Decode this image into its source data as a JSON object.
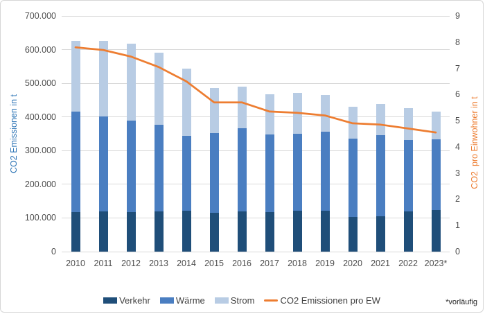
{
  "chart_data": {
    "type": "bar",
    "subtype": "stacked-bars-with-line-overlay",
    "title": "",
    "xlabel": "",
    "ylabel": "CO2 Emissionen in t",
    "y2label": "CO2  pro Einwohner in t",
    "ylabel_color": "#2e75b6",
    "y2label_color": "#ed7d31",
    "ylim": [
      0,
      700000
    ],
    "y2lim": [
      0,
      9
    ],
    "y_tick_labels": [
      "0",
      "100.000",
      "200.000",
      "300.000",
      "400.000",
      "500.000",
      "600.000",
      "700.000"
    ],
    "y2_tick_labels": [
      "0",
      "1",
      "2",
      "3",
      "4",
      "5",
      "6",
      "7",
      "8",
      "9"
    ],
    "grid": true,
    "legend_position": "bottom",
    "footnote": "*vorläufig",
    "categories": [
      "2010",
      "2011",
      "2012",
      "2013",
      "2014",
      "2015",
      "2016",
      "2017",
      "2018",
      "2019",
      "2020",
      "2021",
      "2022",
      "2023*"
    ],
    "series": [
      {
        "name": "Verkehr",
        "type": "bar",
        "axis": "left",
        "color": "#1f4e79",
        "values": [
          118000,
          119000,
          118000,
          120000,
          121000,
          115000,
          119000,
          117000,
          122000,
          122000,
          103000,
          106000,
          120000,
          123000
        ]
      },
      {
        "name": "Wärme",
        "type": "bar",
        "axis": "left",
        "color": "#4a7ec1",
        "values": [
          297000,
          282000,
          271000,
          256000,
          222000,
          237000,
          247000,
          230000,
          228000,
          235000,
          233000,
          239000,
          212000,
          210000
        ]
      },
      {
        "name": "Strom",
        "type": "bar",
        "axis": "left",
        "color": "#b8cce4",
        "values": [
          210000,
          225000,
          228000,
          214000,
          201000,
          133000,
          125000,
          120000,
          122000,
          109000,
          95000,
          93000,
          95000,
          82000
        ]
      },
      {
        "name": "CO2 Emissionen pro EW",
        "type": "line",
        "axis": "right",
        "color": "#ed7d31",
        "values": [
          7.8,
          7.7,
          7.45,
          7.05,
          6.5,
          5.7,
          5.7,
          5.35,
          5.3,
          5.2,
          4.9,
          4.85,
          4.7,
          4.55
        ]
      }
    ]
  }
}
